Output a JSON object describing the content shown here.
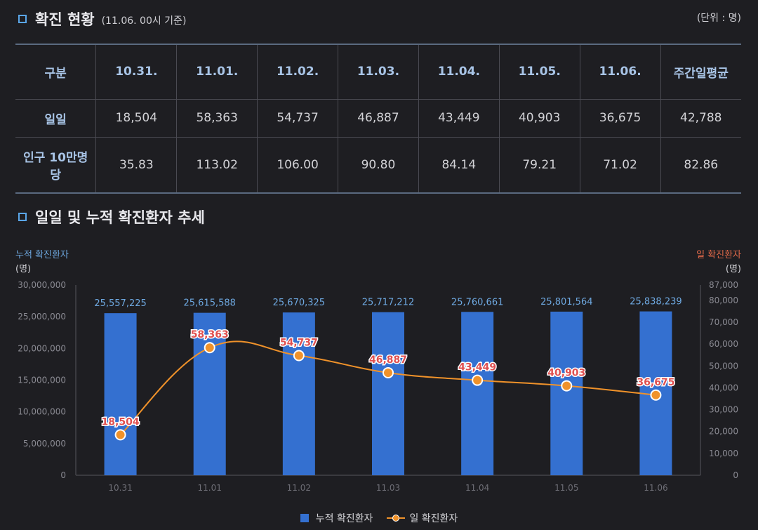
{
  "header": {
    "title": "확진 현황",
    "subtitle": "(11.06. 00시 기준)",
    "unit": "(단위 : 명)"
  },
  "table": {
    "corner": "구분",
    "columns": [
      "10.31.",
      "11.01.",
      "11.02.",
      "11.03.",
      "11.04.",
      "11.05.",
      "11.06.",
      "주간일평균"
    ],
    "rows": [
      {
        "label": "일일",
        "values": [
          "18,504",
          "58,363",
          "54,737",
          "46,887",
          "43,449",
          "40,903",
          "36,675",
          "42,788"
        ]
      },
      {
        "label": "인구 10만명당",
        "values": [
          "35.83",
          "113.02",
          "106.00",
          "90.80",
          "84.14",
          "79.21",
          "71.02",
          "82.86"
        ]
      }
    ]
  },
  "chart_section": {
    "title": "일일 및 누적 확진환자 추세",
    "left_axis_title": "누적 확진환자",
    "left_axis_unit": "(명)",
    "right_axis_title": "일 확진환자",
    "right_axis_unit": "(명)"
  },
  "chart_data": {
    "type": "bar",
    "title": "일일 및 누적 확진환자 추세",
    "categories": [
      "10.31",
      "11.01",
      "11.02",
      "11.03",
      "11.04",
      "11.05",
      "11.06"
    ],
    "series": [
      {
        "name": "누적 확진환자",
        "type": "bar",
        "axis": "left",
        "values": [
          25557225,
          25615588,
          25670325,
          25717212,
          25760661,
          25801564,
          25838239
        ],
        "labels": [
          "25,557,225",
          "25,615,588",
          "25,670,325",
          "25,717,212",
          "25,760,661",
          "25,801,564",
          "25,838,239"
        ]
      },
      {
        "name": "일 확진환자",
        "type": "line",
        "axis": "right",
        "values": [
          18504,
          58363,
          54737,
          46887,
          43449,
          40903,
          36675
        ],
        "labels": [
          "18,504",
          "58,363",
          "54,737",
          "46,887",
          "43,449",
          "40,903",
          "36,675"
        ]
      }
    ],
    "left_axis": {
      "range": [
        0,
        30000000
      ],
      "ticks": [
        0,
        5000000,
        10000000,
        15000000,
        20000000,
        25000000,
        30000000
      ],
      "tick_labels": [
        "0",
        "5,000,000",
        "10,000,000",
        "15,000,000",
        "20,000,000",
        "25,000,000",
        "30,000,000"
      ]
    },
    "right_axis": {
      "range": [
        0,
        87000
      ],
      "ticks": [
        0,
        10000,
        20000,
        30000,
        40000,
        50000,
        60000,
        70000,
        80000,
        87000
      ],
      "tick_labels": [
        "0",
        "10,000",
        "20,000",
        "30,000",
        "40,000",
        "50,000",
        "60,000",
        "70,000",
        "80,000",
        "87,000"
      ]
    },
    "grid": false,
    "legend_position": "bottom-center"
  },
  "colors": {
    "bar": "#3470d0",
    "line": "#f0922a",
    "bar_label": "#6ea8e0",
    "line_label": "#e05050",
    "accent": "#5aa6e8"
  }
}
